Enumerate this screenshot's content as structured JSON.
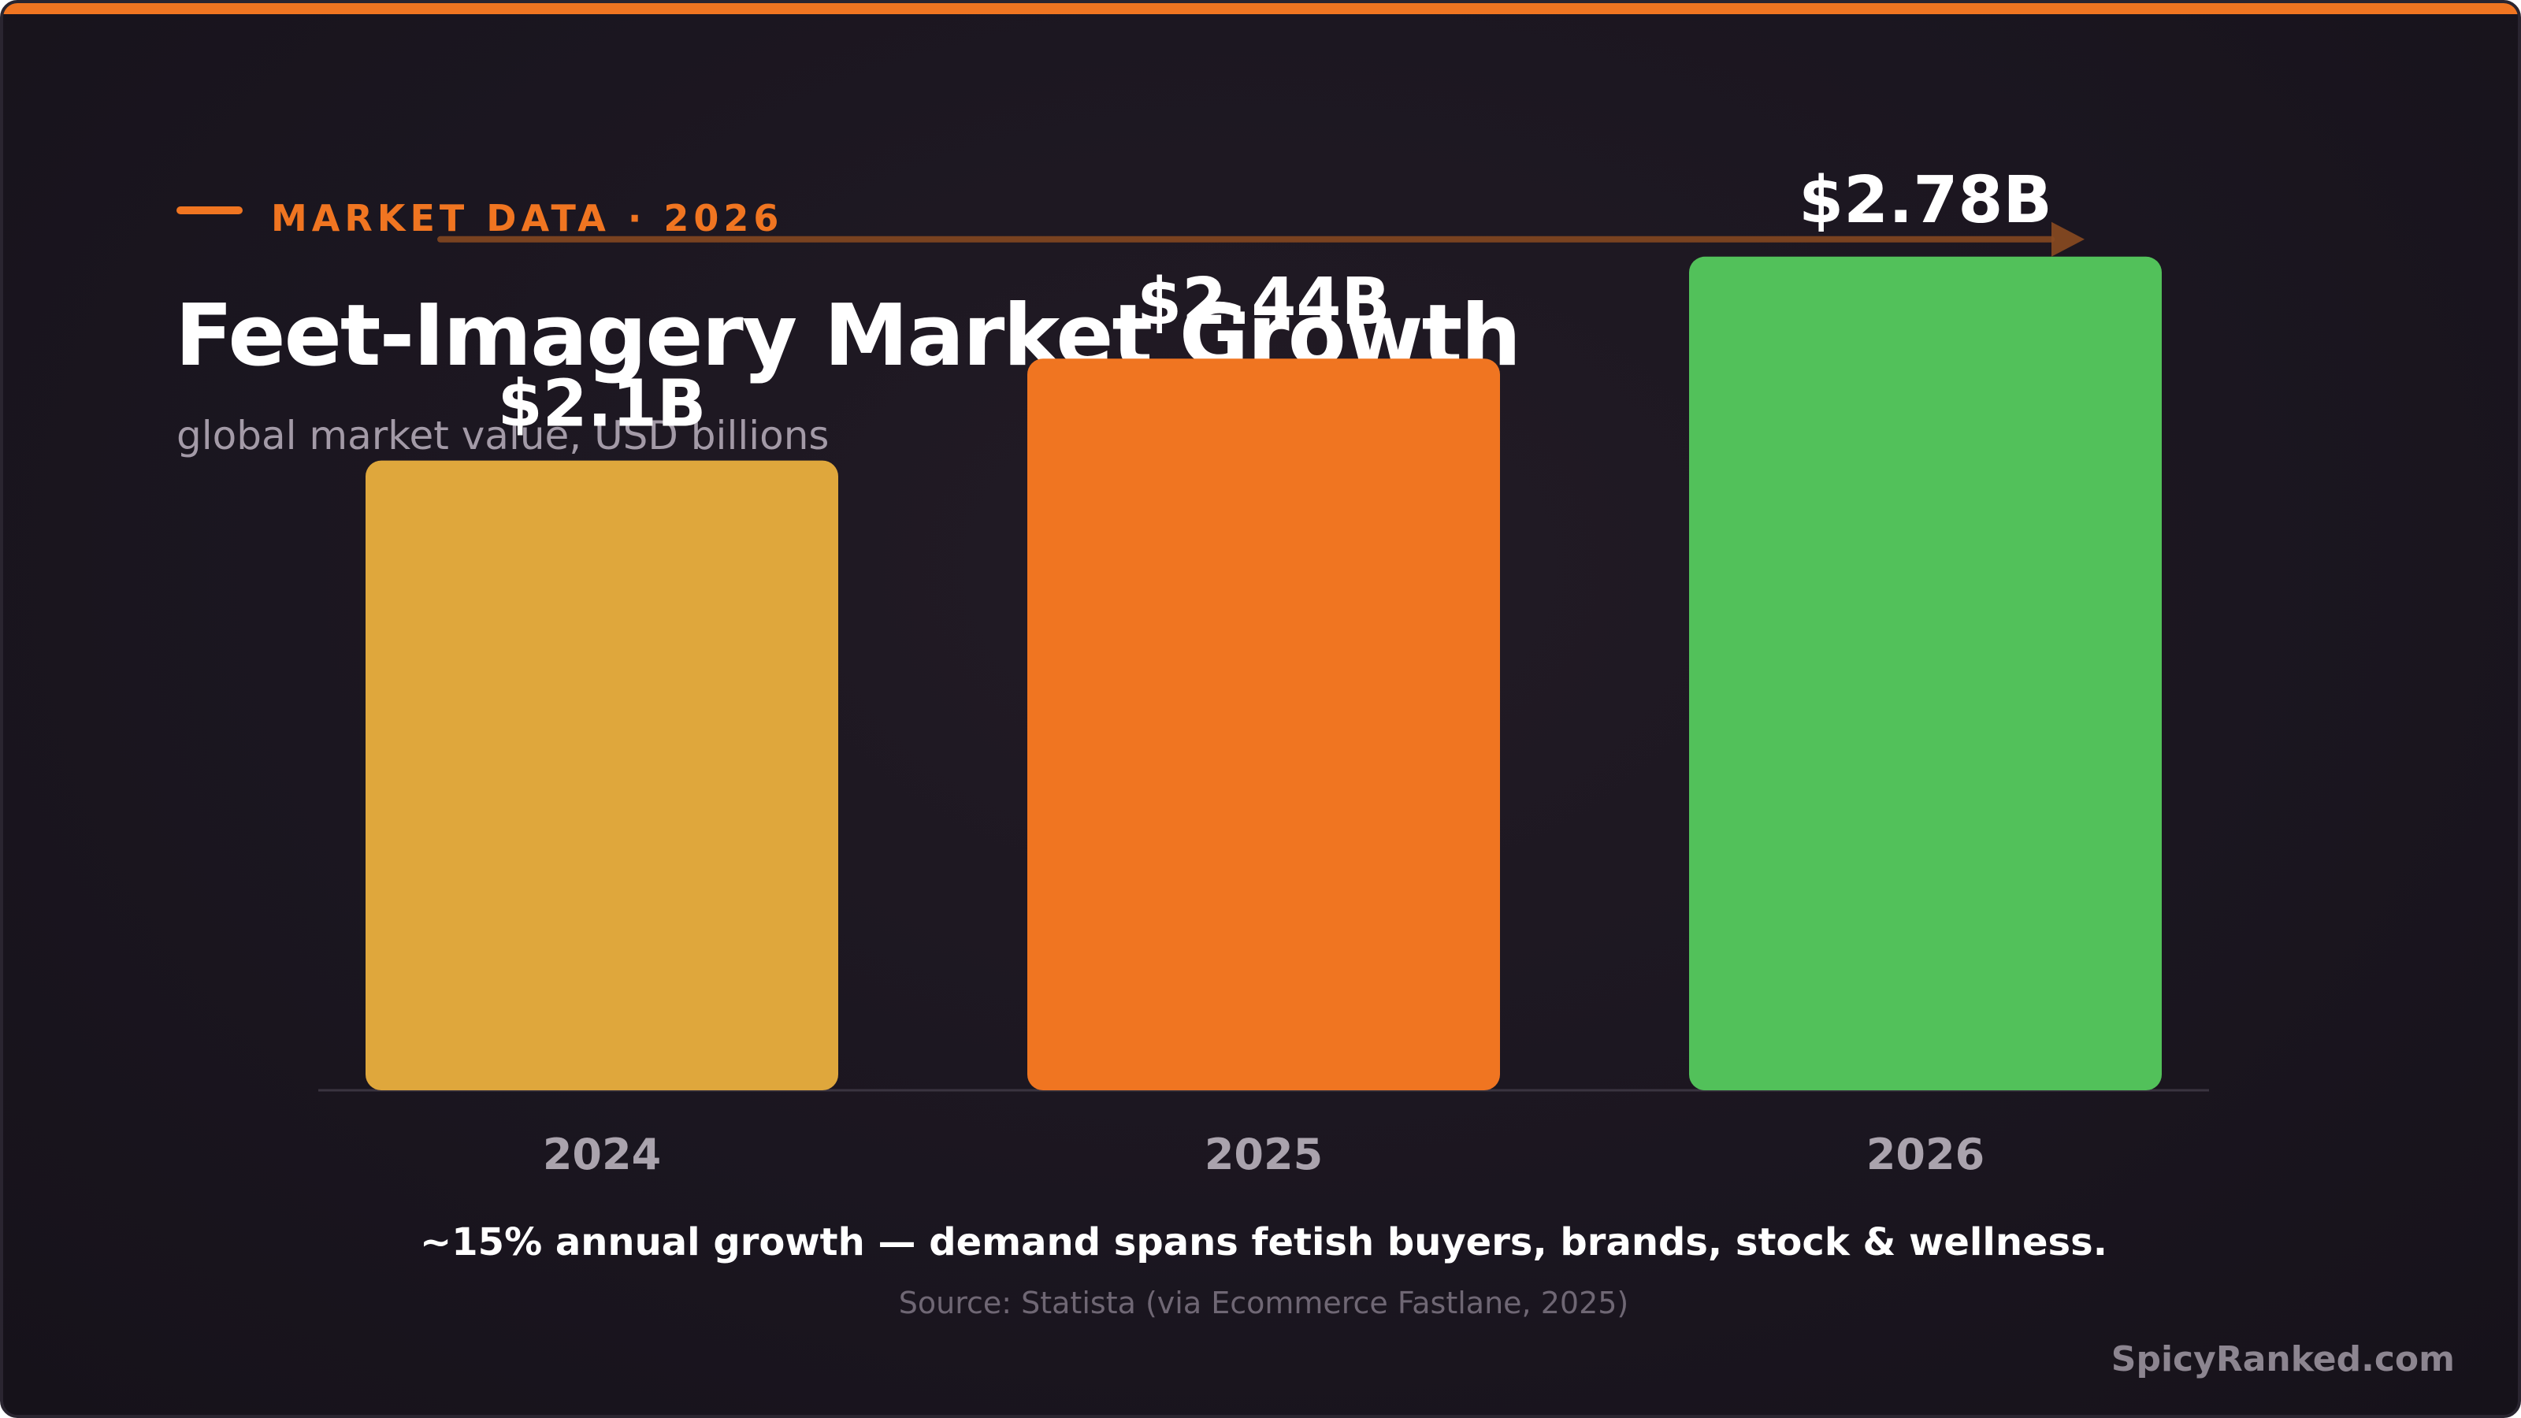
{
  "header": {
    "eyebrow": "MARKET DATA · 2026",
    "title": "Feet-Imagery Market Growth",
    "subtitle": "global market value, USD billions"
  },
  "chart_data": {
    "type": "bar",
    "title": "Feet-Imagery Market Growth",
    "subtitle": "global market value, USD billions",
    "categories": [
      "2024",
      "2025",
      "2026"
    ],
    "values": [
      2.1,
      2.44,
      2.78
    ],
    "data_labels": [
      "$2.1B",
      "$2.44B",
      "$2.78B"
    ],
    "bar_colors": [
      "#dfa73c",
      "#f07521",
      "#52c15a"
    ],
    "ylim": [
      0,
      3.1
    ],
    "grid": false,
    "legend": "none",
    "trend_arrow": true
  },
  "footer": {
    "caption": "~15% annual growth — demand spans fetish buyers, brands, stock & wellness.",
    "source": "Source: Statista (via Ecommerce Fastlane, 2025)",
    "brand": "SpicyRanked.com"
  },
  "colors": {
    "accent": "#f07521",
    "background": "#1b1620",
    "arrow": "#8a4a20"
  }
}
